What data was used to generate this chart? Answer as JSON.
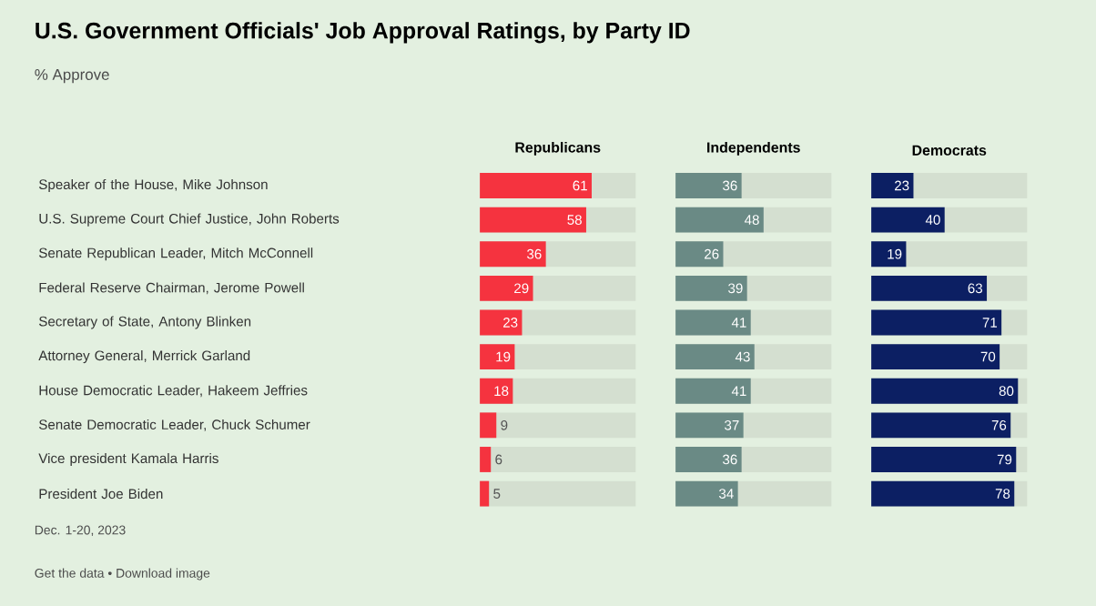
{
  "chart_data": [
    {
      "type": "bar",
      "orientation": "horizontal",
      "title": "U.S. Government Officials' Job Approval Ratings, by Party ID",
      "subtitle": "% Approve",
      "categories": [
        "Speaker of the House, Mike Johnson",
        "U.S. Supreme Court Chief Justice, John Roberts",
        "Senate Republican Leader, Mitch McConnell",
        "Federal Reserve Chairman, Jerome Powell",
        "Secretary of State, Antony Blinken",
        "Attorney General, Merrick Garland",
        "House Democratic Leader, Hakeem Jeffries",
        "Senate Democratic Leader, Chuck Schumer",
        "Vice president Kamala Harris",
        "President Joe Biden"
      ],
      "series": [
        {
          "name": "Republicans",
          "color": "#f5333f",
          "values": [
            61,
            58,
            36,
            29,
            23,
            19,
            18,
            9,
            6,
            5
          ]
        }
      ],
      "xlim": [
        0,
        85
      ],
      "data_labels": true,
      "tick_labels": "y",
      "annotations": [
        "Dec. 1-20, 2023",
        "Get the data • Download image"
      ]
    },
    {
      "type": "bar",
      "orientation": "horizontal",
      "series": [
        {
          "name": "Independents",
          "color": "#6a8a85",
          "values": [
            36,
            48,
            26,
            39,
            41,
            43,
            41,
            37,
            36,
            34
          ]
        }
      ],
      "xlim": [
        0,
        85
      ],
      "data_labels": true,
      "tick_labels": false
    },
    {
      "type": "bar",
      "orientation": "horizontal",
      "series": [
        {
          "name": "Democrats",
          "color": "#0c1f63",
          "values": [
            23,
            40,
            19,
            63,
            71,
            70,
            80,
            76,
            79,
            78
          ]
        }
      ],
      "xlim": [
        0,
        85
      ],
      "data_labels": true,
      "tick_labels": false
    }
  ]
}
